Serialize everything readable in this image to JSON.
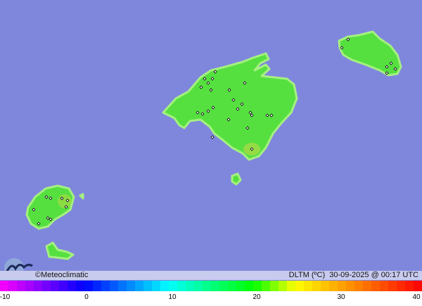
{
  "credit": "©Meteoclimatic",
  "variable": "DLTM (ºC)",
  "timestamp": "30-09-2025 @ 00:17 UTC",
  "colorbar": {
    "min": -10,
    "max": 40,
    "ticks": [
      "-10",
      "0",
      "10",
      "20",
      "30",
      "40"
    ]
  },
  "colors": {
    "sea": "#7f87dd",
    "land": "#55e040",
    "land_edge": "#a6f080",
    "station": "#000000"
  },
  "logo": "meteoclimatic-logo-icon"
}
